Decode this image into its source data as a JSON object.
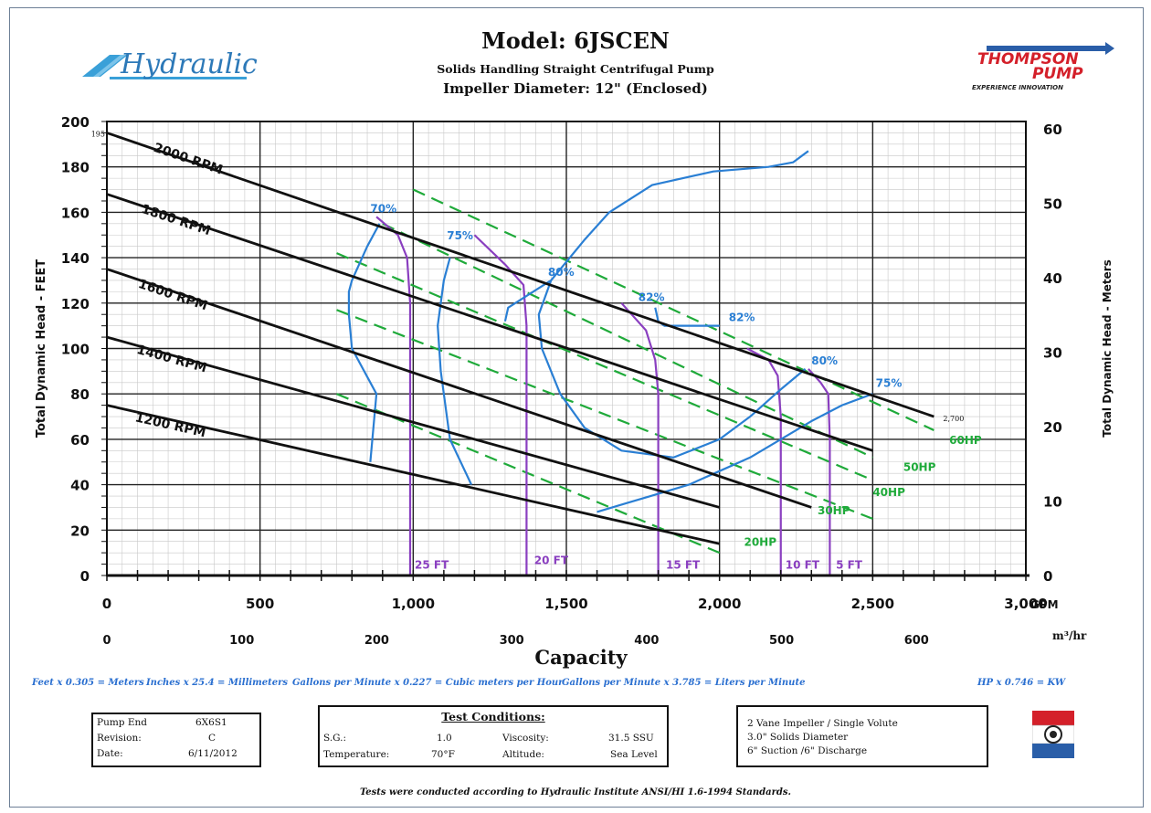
{
  "header": {
    "title": "Model:  6JSCEN",
    "subtitle": "Solids Handling Straight Centrifugal Pump",
    "impeller": "Impeller Diameter: 12\" (Enclosed)",
    "left_logo_text": "Hydraulic",
    "right_logo_line1": "THOMPSON",
    "right_logo_line2": "PUMP",
    "right_logo_tag": "EXPERIENCE INNOVATION"
  },
  "conversions": [
    "Feet x 0.305 = Meters",
    "Inches x 25.4 = Millimeters",
    "Gallons per Minute x 0.227 = Cubic meters per Hour",
    "Gallons per Minute x 3.785 = Liters per Minute",
    "HP x 0.746 = KW"
  ],
  "pump_box": {
    "rows": [
      {
        "label": "Pump End",
        "value": "6X6S1"
      },
      {
        "label": "Revision:",
        "value": "C"
      },
      {
        "label": "Date:",
        "value": "6/11/2012"
      }
    ]
  },
  "test_conditions": {
    "title": "Test Conditions:",
    "sg_label": "S.G.:",
    "sg_value": "1.0",
    "visc_label": "Viscosity:",
    "visc_value": "31.5 SSU",
    "temp_label": "Temperature:",
    "temp_value": "70°F",
    "alt_label": "Altitude:",
    "alt_value": "Sea Level"
  },
  "notes_box": {
    "lines": [
      "2 Vane Impeller / Single Volute",
      "3.0\" Solids Diameter",
      "6\" Suction /6\" Discharge"
    ]
  },
  "footer_note": "Tests were conducted according to Hydraulic Institute ANSI/HI 1.6-1994 Standards.",
  "colors": {
    "rpm": "#111111",
    "eff": "#2a7fd4",
    "hp": "#1faa3a",
    "npsh": "#8a3fc0",
    "grid": "#222222",
    "minor": "#c8c8c8"
  },
  "chart_data": {
    "type": "line",
    "xlabel": "Capacity",
    "ylabel_left": "Total Dynamic Head - FEET",
    "ylabel_right": "Total Dynamic Head - Meters",
    "x_unit": "GPM",
    "x2_unit": "m³/hr",
    "xlim": [
      0,
      3000
    ],
    "ylim": [
      0,
      200
    ],
    "x_ticks": [
      0,
      500,
      1000,
      1500,
      2000,
      2500,
      3000
    ],
    "x_tick_labels": [
      "0",
      "500",
      "1,000",
      "1,500",
      "2,000",
      "2,500",
      "3,000"
    ],
    "y_ticks": [
      0,
      20,
      40,
      60,
      80,
      100,
      120,
      140,
      160,
      180,
      200
    ],
    "y_tick_labels": [
      "0",
      "20",
      "40",
      "60",
      "80",
      "100",
      "120",
      "140",
      "160",
      "180",
      "200"
    ],
    "x2_ticks": [
      0,
      100,
      200,
      300,
      400,
      500,
      600
    ],
    "y2_ticks": [
      0,
      10,
      20,
      30,
      40,
      50,
      60
    ],
    "grid": true,
    "annotations": [
      {
        "text": "195",
        "x": 0,
        "y": 195
      },
      {
        "text": "2,700",
        "x": 2700,
        "y": 70
      }
    ],
    "rpm_curves": [
      {
        "name": "2000 RPM",
        "x": [
          0,
          2700
        ],
        "y": [
          195,
          70
        ],
        "label_x": 150,
        "label_y": 187
      },
      {
        "name": "1800 RPM",
        "x": [
          0,
          2500
        ],
        "y": [
          168,
          55
        ],
        "label_x": 110,
        "label_y": 160
      },
      {
        "name": "1600 RPM",
        "x": [
          0,
          2300
        ],
        "y": [
          135,
          30
        ],
        "label_x": 100,
        "label_y": 127
      },
      {
        "name": "1400 RPM",
        "x": [
          0,
          2000
        ],
        "y": [
          105,
          30
        ],
        "label_x": 95,
        "label_y": 98
      },
      {
        "name": "1200 RPM",
        "x": [
          0,
          2000
        ],
        "y": [
          75,
          14
        ],
        "label_x": 90,
        "label_y": 68
      }
    ],
    "efficiency_curves": [
      {
        "name": "70%",
        "x": [
          860,
          880,
          800,
          790,
          790,
          800,
          850,
          890
        ],
        "y": [
          50,
          80,
          100,
          115,
          125,
          130,
          145,
          155
        ],
        "label_x": 860,
        "label_y": 160
      },
      {
        "name": "75%",
        "x": [
          1190,
          1120,
          1090,
          1080,
          1100,
          1120
        ],
        "y": [
          40,
          60,
          90,
          110,
          130,
          140
        ],
        "label_x": 1110,
        "label_y": 148
      },
      {
        "name": "80%",
        "x": [
          1300,
          1310,
          1380,
          1450,
          1560,
          1640,
          1780,
          1980,
          2160,
          2240,
          2290
        ],
        "y": [
          112,
          118,
          124,
          130,
          148,
          160,
          172,
          178,
          180,
          182,
          187
        ],
        "label_x": 1440,
        "label_y": 132
      },
      {
        "name": "80%",
        "x": [
          1450,
          1410,
          1420,
          1480,
          1560,
          1680,
          1850,
          2000,
          2100,
          2200,
          2280
        ],
        "y": [
          130,
          115,
          100,
          80,
          65,
          55,
          52,
          60,
          70,
          82,
          91
        ],
        "label_x": 2300,
        "label_y": 93
      },
      {
        "name": "82%",
        "x": [
          1790,
          1800,
          1820,
          1900,
          2000
        ],
        "y": [
          118,
          112,
          110,
          110,
          110
        ],
        "label_x": 2030,
        "label_y": 112
      },
      {
        "name": "82%",
        "x": [],
        "y": [],
        "label_x": 1735,
        "label_y": 121
      },
      {
        "name": "75%",
        "x": [
          1600,
          1700,
          1800,
          1900,
          2000,
          2100,
          2200,
          2300,
          2400,
          2500
        ],
        "y": [
          28,
          32,
          36,
          40,
          46,
          52,
          60,
          68,
          75,
          80
        ],
        "label_x": 2510,
        "label_y": 83
      }
    ],
    "hp_curves": [
      {
        "name": "60HP",
        "x": [
          1000,
          2700
        ],
        "y": [
          170,
          64
        ],
        "label_x": 2750,
        "label_y": 58
      },
      {
        "name": "50HP",
        "x": [
          900,
          2500
        ],
        "y": [
          155,
          52
        ],
        "label_x": 2600,
        "label_y": 46
      },
      {
        "name": "40HP",
        "x": [
          750,
          2500
        ],
        "y": [
          142,
          42
        ],
        "label_x": 2500,
        "label_y": 35
      },
      {
        "name": "30HP",
        "x": [
          750,
          2500
        ],
        "y": [
          117,
          25
        ],
        "label_x": 2320,
        "label_y": 27
      },
      {
        "name": "20HP",
        "x": [
          750,
          2000
        ],
        "y": [
          80,
          10
        ],
        "label_x": 2080,
        "label_y": 13
      }
    ],
    "npsh_curves": [
      {
        "name": "25 FT",
        "x": [
          880,
          950,
          980,
          990,
          990
        ],
        "y": [
          158,
          150,
          140,
          120,
          0
        ],
        "label_x": 1005,
        "label_y": 3
      },
      {
        "name": "20 FT",
        "x": [
          1200,
          1300,
          1360,
          1370,
          1370
        ],
        "y": [
          150,
          137,
          128,
          110,
          0
        ],
        "label_x": 1395,
        "label_y": 5
      },
      {
        "name": "15 FT",
        "x": [
          1680,
          1760,
          1790,
          1800,
          1800
        ],
        "y": [
          120,
          108,
          95,
          80,
          0
        ],
        "label_x": 1825,
        "label_y": 3
      },
      {
        "name": "10 FT",
        "x": [
          2090,
          2160,
          2190,
          2200,
          2200
        ],
        "y": [
          100,
          95,
          88,
          70,
          0
        ],
        "label_x": 2215,
        "label_y": 3
      },
      {
        "name": "5 FT",
        "x": [
          2290,
          2330,
          2355,
          2360,
          2360
        ],
        "y": [
          91,
          85,
          80,
          60,
          0
        ],
        "label_x": 2380,
        "label_y": 3
      }
    ]
  }
}
